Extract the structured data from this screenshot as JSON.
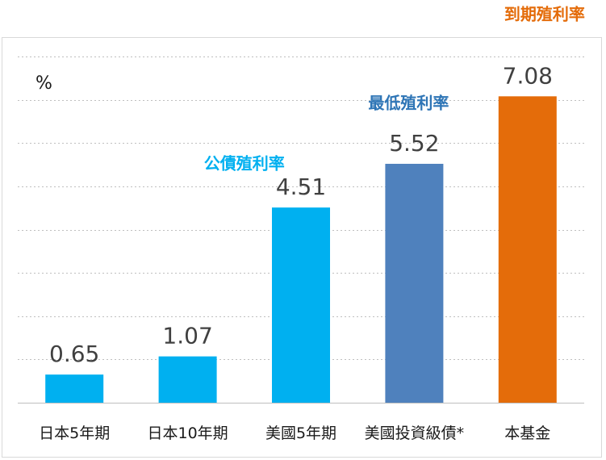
{
  "chart_data": {
    "type": "bar",
    "title": "",
    "unit_label": "%",
    "categories": [
      "日本5年期",
      "日本10年期",
      "美國5年期",
      "美國投資級債*",
      "本基金"
    ],
    "values": [
      0.65,
      1.07,
      4.51,
      5.52,
      7.08
    ],
    "value_labels": [
      "0.65",
      "1.07",
      "4.51",
      "5.52",
      "7.08"
    ],
    "bar_colors": [
      "#00b0f0",
      "#00b0f0",
      "#00b0f0",
      "#4f81bd",
      "#e46c0a"
    ],
    "ylim": [
      0,
      8
    ],
    "grid": true,
    "annotations": [
      {
        "text": "公債殖利率",
        "color": "#00b0f0",
        "x": 1.5,
        "y": 5.4
      },
      {
        "text": "最低殖利率",
        "color": "#2e75b6",
        "x": 2.95,
        "y": 6.8
      },
      {
        "text": "到期殖利率",
        "color": "#e46c0a",
        "x": 4.15,
        "y": 8.85
      }
    ]
  }
}
